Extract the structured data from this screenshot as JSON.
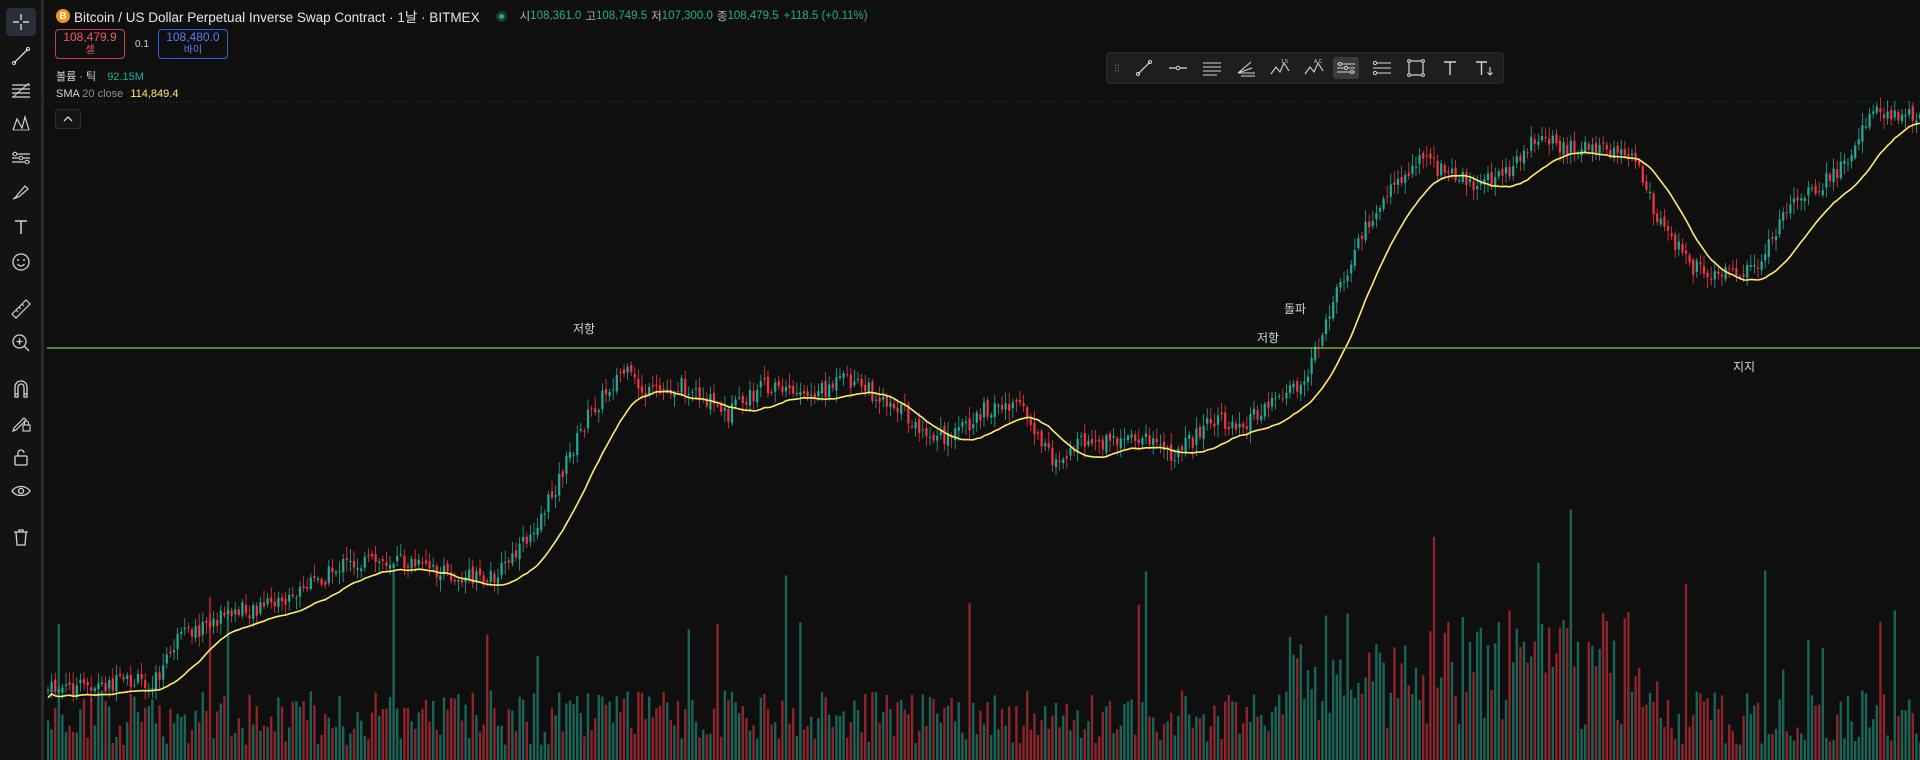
{
  "header": {
    "logo_glyph": "B",
    "title": "Bitcoin / US Dollar Perpetual Inverse Swap Contract · 1날 · BITMEX",
    "open_label": "시",
    "open_value": "108,361.0",
    "high_label": "고",
    "high_value": "108,749.5",
    "low_label": "저",
    "low_value": "107,300.0",
    "close_label": "종",
    "close_value": "108,479.5",
    "change": "+118.5 (+0.11%)"
  },
  "trade": {
    "sell_price": "108,479.9",
    "sell_label": "셀",
    "spread": "0.1",
    "buy_price": "108,480.0",
    "buy_label": "바이"
  },
  "indicators": {
    "volume_label": "볼륨 · 틱",
    "volume_value": "92.15M",
    "sma_label": "SMA",
    "sma_params": "20 close",
    "sma_value": "114,849.4"
  },
  "annotations": {
    "resistance_1": "저항",
    "resistance_2": "저항",
    "breakout": "돌파",
    "support": "지지"
  },
  "left_toolbar_icons": [
    "crosshair-icon",
    "trend-line-icon",
    "fib-retracement-icon",
    "pattern-icon",
    "prediction-icon",
    "brush-icon",
    "text-icon",
    "emoji-icon",
    "ruler-icon",
    "zoom-in-icon",
    "magnet-icon",
    "lock-drawing-icon",
    "lock-icon",
    "eye-icon",
    "trash-icon"
  ],
  "drawing_toolbar_icons": [
    "drag-handle-icon",
    "trend-line-icon",
    "horizontal-ray-icon",
    "parallel-channel-icon",
    "pitchfork-icon",
    "elliott-wave-icon",
    "abcd-pattern-icon",
    "horizontal-line-tool-icon",
    "long-position-icon",
    "rectangle-icon",
    "text-tool-icon",
    "text-down-icon"
  ],
  "colors": {
    "up": "#22ab94",
    "down": "#f23645",
    "sma": "#ffeb75",
    "hline": "#8bc34a",
    "background": "#0f0f0f"
  }
}
